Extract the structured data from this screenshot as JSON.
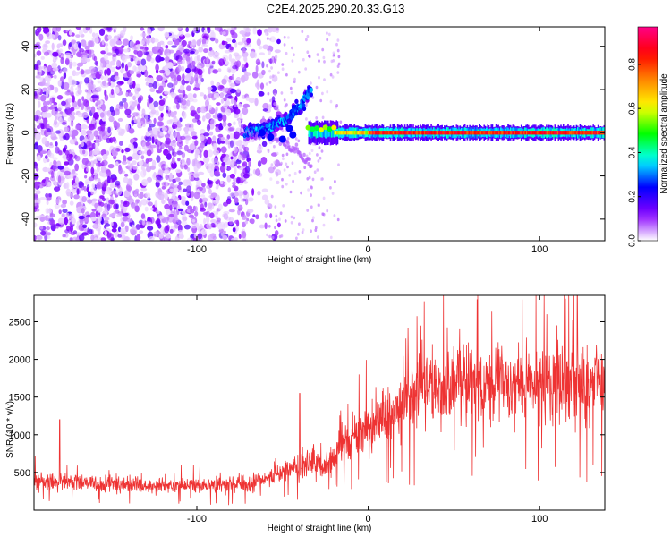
{
  "title": "C2E4.2025.290.20.33.G13",
  "chart_data": [
    {
      "type": "heatmap",
      "name": "spectrogram",
      "xlabel": "Height of straight line (km)",
      "ylabel": "Frequency (Hz)",
      "xlim": [
        -195,
        138
      ],
      "ylim": [
        -50,
        49
      ],
      "xticks": [
        -100,
        0,
        100
      ],
      "yticks": [
        -40,
        -20,
        0,
        20,
        40
      ],
      "colorbar": {
        "label": "Normalized spectral amplitude",
        "range": [
          0,
          0.97
        ],
        "ticks": [
          0.0,
          0.2,
          0.4,
          0.6,
          0.8
        ],
        "tick_labels": [
          "0.0",
          "0.2",
          "0.4",
          "0.6",
          "0.8"
        ],
        "colormap": [
          "#ffffff",
          "#8800ff",
          "#0000ff",
          "#00ffff",
          "#00ff00",
          "#ffff00",
          "#ff8800",
          "#ff0000",
          "#ff0088"
        ]
      },
      "features": {
        "noise_region_x": [
          -195,
          -60
        ],
        "chirp_curve": [
          [
            -72,
            0
          ],
          [
            -58,
            2
          ],
          [
            -48,
            6
          ],
          [
            -40,
            12
          ],
          [
            -33,
            20
          ]
        ],
        "carrier_x": [
          -35,
          138
        ],
        "carrier_frequency_hz": 0
      }
    },
    {
      "type": "line",
      "name": "snr",
      "xlabel": "Height of straight line (km)",
      "ylabel": "SNR (10 * v/v)",
      "xlim": [
        -195,
        138
      ],
      "ylim": [
        0,
        2850
      ],
      "xticks": [
        -100,
        0,
        100
      ],
      "yticks": [
        500,
        1000,
        1500,
        2000,
        2500
      ],
      "line_color": "#ee3333",
      "trend": [
        [
          -195,
          380
        ],
        [
          -120,
          320
        ],
        [
          -70,
          340
        ],
        [
          -50,
          500
        ],
        [
          -35,
          650
        ],
        [
          -25,
          550
        ],
        [
          -15,
          900
        ],
        [
          0,
          1100
        ],
        [
          15,
          1300
        ],
        [
          30,
          1600
        ],
        [
          60,
          1700
        ],
        [
          100,
          1650
        ],
        [
          138,
          1700
        ]
      ],
      "spikes": [
        [
          -180,
          1200
        ],
        [
          -40,
          1550
        ],
        [
          115,
          2800
        ],
        [
          122,
          2850
        ]
      ]
    }
  ]
}
